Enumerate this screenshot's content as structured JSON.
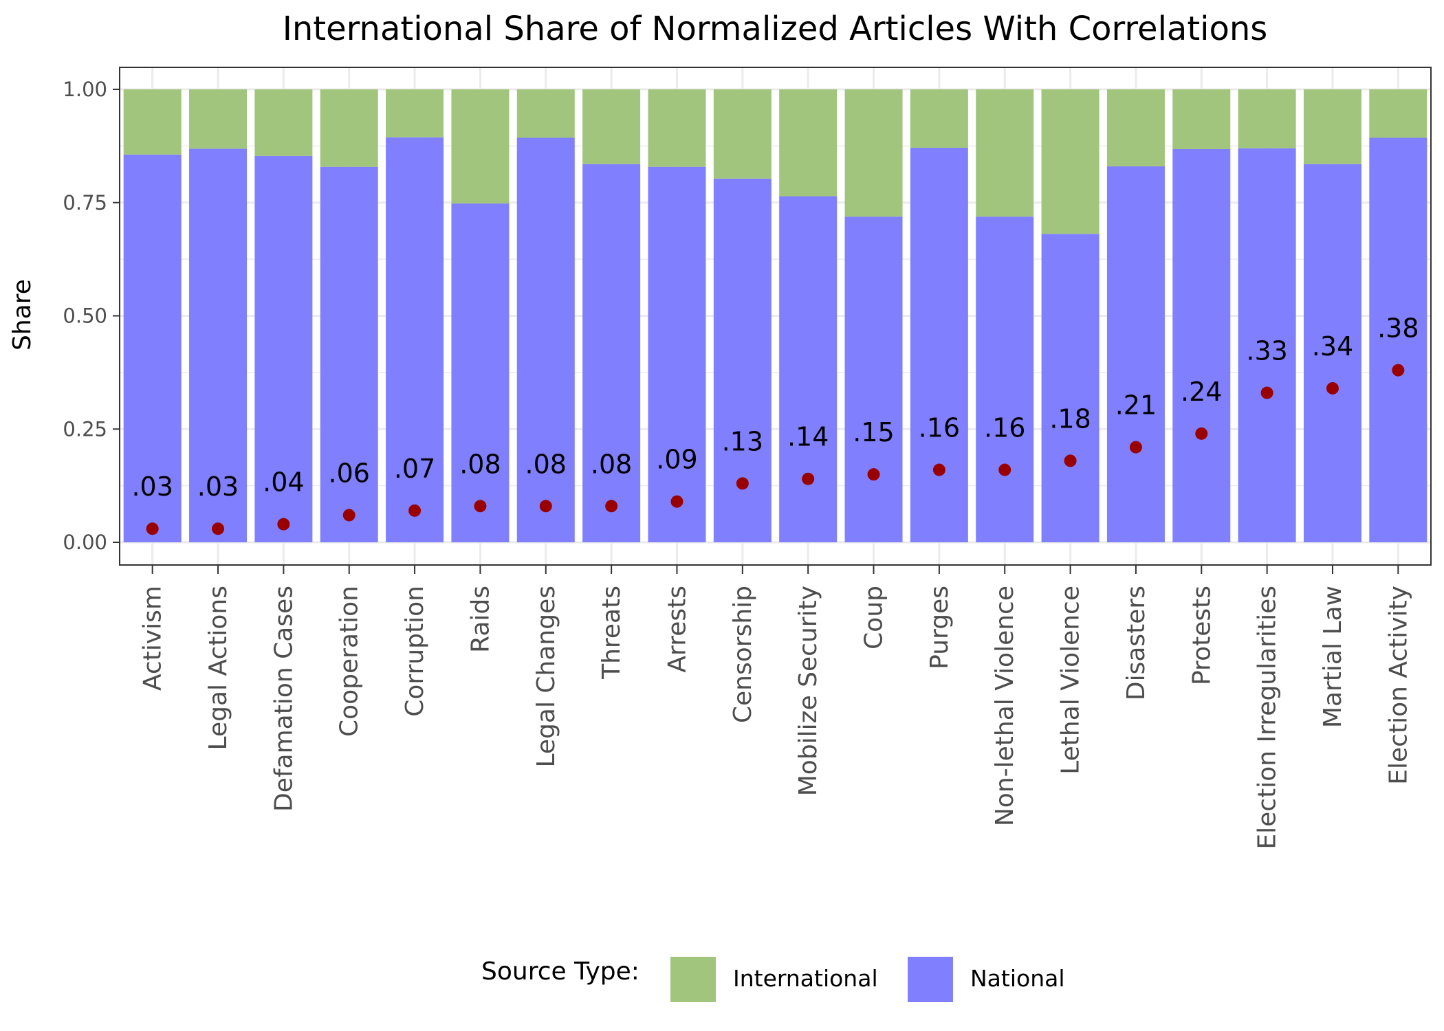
{
  "chart_data": {
    "type": "bar",
    "title": "International Share of Normalized Articles With Correlations",
    "ylabel": "Share",
    "xlabel": "",
    "ylim": [
      0,
      1
    ],
    "yticks": [
      "0.00",
      "0.25",
      "0.50",
      "0.75",
      "1.00"
    ],
    "ytick_values": [
      0,
      0.25,
      0.5,
      0.75,
      1
    ],
    "stacked": true,
    "grid": true,
    "legend_position": "bottom",
    "legend_title": "Source Type:",
    "categories": [
      "Activism",
      "Legal Actions",
      "Defamation Cases",
      "Cooperation",
      "Corruption",
      "Raids",
      "Legal Changes",
      "Threats",
      "Arrests",
      "Censorship",
      "Mobilize Security",
      "Coup",
      "Purges",
      "Non-lethal Violence",
      "Lethal Violence",
      "Disasters",
      "Protests",
      "Election Irregularities",
      "Martial Law",
      "Election Activity"
    ],
    "series": [
      {
        "name": "National",
        "color": "#8080ff",
        "values": [
          0.856,
          0.869,
          0.853,
          0.829,
          0.894,
          0.748,
          0.893,
          0.835,
          0.829,
          0.803,
          0.764,
          0.719,
          0.871,
          0.719,
          0.681,
          0.83,
          0.868,
          0.87,
          0.835,
          0.893
        ]
      },
      {
        "name": "International",
        "color": "#a1c57d",
        "values": [
          0.144,
          0.131,
          0.147,
          0.171,
          0.106,
          0.252,
          0.107,
          0.165,
          0.171,
          0.197,
          0.236,
          0.281,
          0.129,
          0.281,
          0.319,
          0.17,
          0.132,
          0.13,
          0.165,
          0.107
        ]
      }
    ],
    "correlations": {
      "color": "#990000",
      "values": [
        0.03,
        0.03,
        0.04,
        0.06,
        0.07,
        0.08,
        0.08,
        0.08,
        0.09,
        0.13,
        0.14,
        0.15,
        0.16,
        0.16,
        0.18,
        0.21,
        0.24,
        0.33,
        0.34,
        0.38
      ],
      "labels": [
        ".03",
        ".03",
        ".04",
        ".06",
        ".07",
        ".08",
        ".08",
        ".08",
        ".09",
        ".13",
        ".14",
        ".15",
        ".16",
        ".16",
        ".18",
        ".21",
        ".24",
        ".33",
        ".34",
        ".38"
      ]
    },
    "legend": [
      {
        "name": "International",
        "color": "#a1c57d"
      },
      {
        "name": "National",
        "color": "#8080ff"
      }
    ]
  }
}
